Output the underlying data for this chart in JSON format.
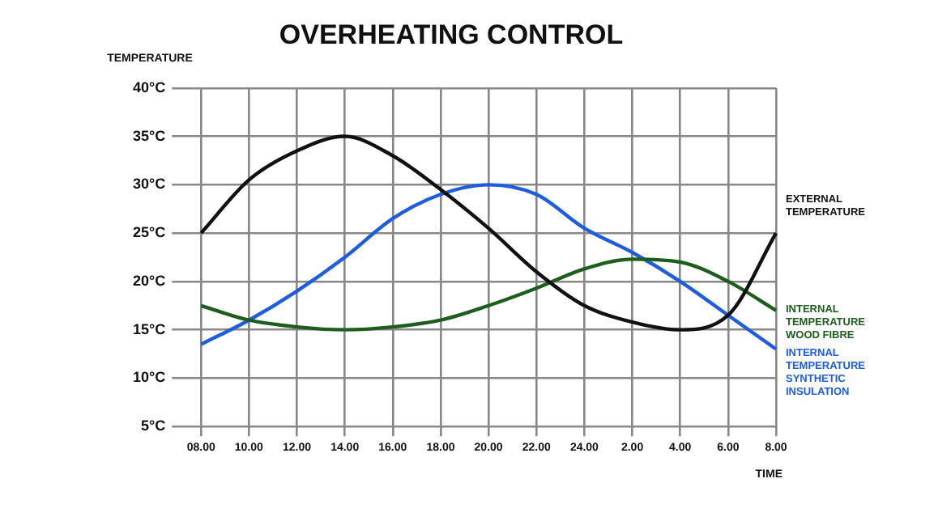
{
  "chart_data": {
    "type": "line",
    "title": "OVERHEATING CONTROL",
    "xlabel": "TIME",
    "ylabel": "TEMPERATURE",
    "categories": [
      "08.00",
      "10.00",
      "12.00",
      "14.00",
      "16.00",
      "18.00",
      "20.00",
      "22.00",
      "24.00",
      "2.00",
      "4.00",
      "6.00",
      "8.00"
    ],
    "series": [
      {
        "name": "EXTERNAL TEMPERATURE",
        "color": "#111111",
        "values": [
          25,
          30.5,
          33.5,
          35,
          33,
          29.5,
          25.5,
          21,
          17.5,
          15.8,
          15,
          16.5,
          25
        ]
      },
      {
        "name": "INTERNAL TEMPERATURE WOOD FIBRE",
        "color": "#1d5e1d",
        "values": [
          17.5,
          16,
          15.3,
          15,
          15.3,
          16,
          17.5,
          19.3,
          21.3,
          22.3,
          22,
          20,
          17
        ]
      },
      {
        "name": "INTERNAL TEMPERATURE SYNTHETIC INSULATION",
        "color": "#1e5ce0",
        "values": [
          13.5,
          16,
          19,
          22.5,
          26.5,
          29,
          30,
          29,
          25.5,
          23,
          20,
          16.5,
          13
        ]
      }
    ],
    "ylim": [
      5,
      40
    ],
    "yticks": [
      {
        "value": 5,
        "label": "5°C"
      },
      {
        "value": 10,
        "label": "10°C"
      },
      {
        "value": 15,
        "label": "15°C"
      },
      {
        "value": 20,
        "label": "20°C"
      },
      {
        "value": 25,
        "label": "25°C"
      },
      {
        "value": 30,
        "label": "30°C"
      },
      {
        "value": 35,
        "label": "35°C"
      },
      {
        "value": 40,
        "label": "40°C"
      }
    ],
    "grid": true,
    "legend": false,
    "marker": "none",
    "line_style": "solid"
  }
}
